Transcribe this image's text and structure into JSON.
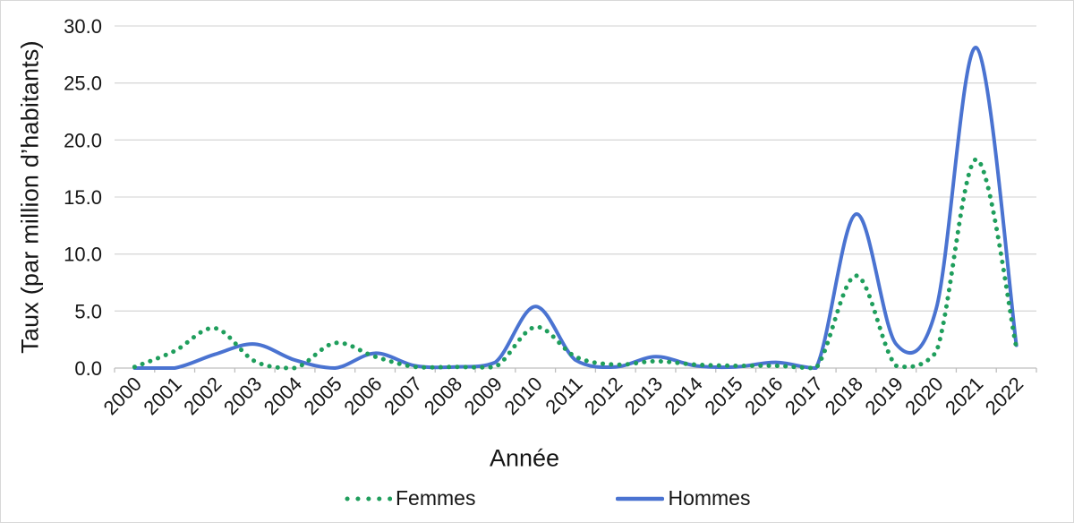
{
  "figure": {
    "background": "#ffffff",
    "border_color": "#d8d8d8",
    "gridline_color": "#d9d9d9",
    "axis_color": "#bfbfbf",
    "text_color": "#161616"
  },
  "chart_data": {
    "type": "line",
    "title": "",
    "xlabel": "Année",
    "ylabel": "Taux (par million d’habitants)",
    "x": [
      "2000",
      "2001",
      "2002",
      "2003",
      "2004",
      "2005",
      "2006",
      "2007",
      "2008",
      "2009",
      "2010",
      "2011",
      "2012",
      "2013",
      "2014",
      "2015",
      "2016",
      "2017",
      "2018",
      "2019",
      "2020",
      "2021",
      "2022"
    ],
    "series": [
      {
        "name": "Femmes",
        "color": "#1f9e5c",
        "style": "dotted",
        "values": [
          0.1,
          1.5,
          3.5,
          0.6,
          0.0,
          2.2,
          1.0,
          0.1,
          0.1,
          0.1,
          3.6,
          1.0,
          0.3,
          0.6,
          0.3,
          0.2,
          0.2,
          0.0,
          8.1,
          0.2,
          1.4,
          18.3,
          1.8
        ]
      },
      {
        "name": "Hommes",
        "color": "#4a73d1",
        "style": "solid",
        "values": [
          0.0,
          0.0,
          1.2,
          2.1,
          0.7,
          0.0,
          1.3,
          0.2,
          0.1,
          0.5,
          5.4,
          0.7,
          0.1,
          1.0,
          0.2,
          0.1,
          0.5,
          0.0,
          13.5,
          2.1,
          5.2,
          28.1,
          2.0
        ]
      }
    ],
    "ylim": [
      0,
      30
    ],
    "yticks": [
      0,
      5,
      10,
      15,
      20,
      25,
      30
    ],
    "ytick_labels": [
      "0.0",
      "5.0",
      "10.0",
      "15.0",
      "20.0",
      "25.0",
      "30.0"
    ],
    "grid": "horizontal",
    "legend_position": "bottom",
    "smooth": true,
    "draw_order": [
      "Hommes",
      "Femmes"
    ]
  }
}
